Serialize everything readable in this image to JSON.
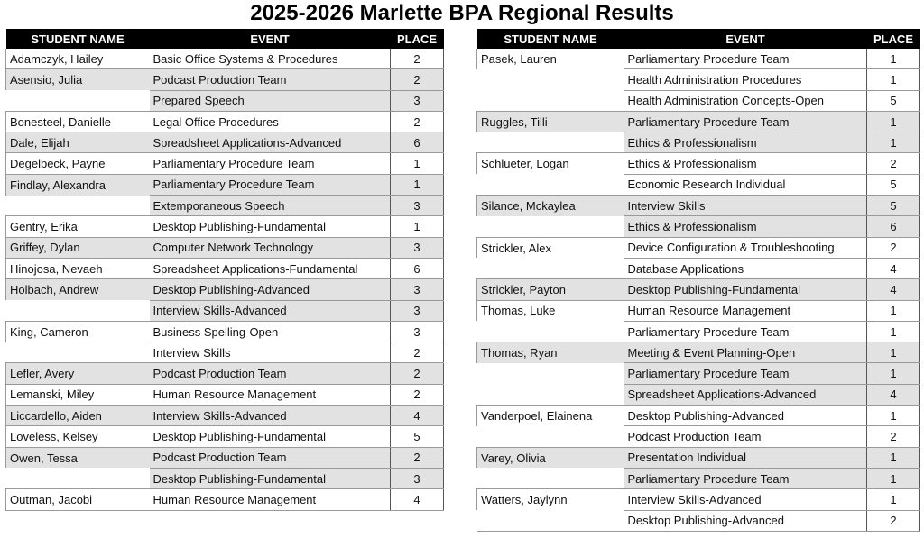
{
  "title": "2025-2026 Marlette BPA Regional Results",
  "tables": [
    {
      "headers": [
        "STUDENT NAME",
        "EVENT",
        "PLACE"
      ],
      "students": [
        {
          "name": "Adamczyk, Hailey",
          "events": [
            {
              "event": "Basic Office Systems & Procedures",
              "place": 2
            }
          ]
        },
        {
          "name": "Asensio, Julia",
          "events": [
            {
              "event": "Podcast Production Team",
              "place": 2
            },
            {
              "event": "Prepared Speech",
              "place": 3
            }
          ]
        },
        {
          "name": "Bonesteel, Danielle",
          "events": [
            {
              "event": "Legal Office Procedures",
              "place": 2
            }
          ]
        },
        {
          "name": "Dale, Elijah",
          "events": [
            {
              "event": "Spreadsheet Applications-Advanced",
              "place": 6
            }
          ]
        },
        {
          "name": "Degelbeck, Payne",
          "events": [
            {
              "event": "Parliamentary Procedure Team",
              "place": 1
            }
          ]
        },
        {
          "name": "Findlay, Alexandra",
          "events": [
            {
              "event": "Parliamentary Procedure Team",
              "place": 1
            },
            {
              "event": "Extemporaneous Speech",
              "place": 3
            }
          ]
        },
        {
          "name": "Gentry, Erika",
          "events": [
            {
              "event": "Desktop Publishing-Fundamental",
              "place": 1
            }
          ]
        },
        {
          "name": "Griffey, Dylan",
          "events": [
            {
              "event": "Computer Network Technology",
              "place": 3
            }
          ]
        },
        {
          "name": "Hinojosa, Nevaeh",
          "events": [
            {
              "event": "Spreadsheet Applications-Fundamental",
              "place": 6
            }
          ]
        },
        {
          "name": "Holbach, Andrew",
          "events": [
            {
              "event": "Desktop Publishing-Advanced",
              "place": 3
            },
            {
              "event": "Interview Skills-Advanced",
              "place": 3
            }
          ]
        },
        {
          "name": "King, Cameron",
          "events": [
            {
              "event": "Business Spelling-Open",
              "place": 3
            },
            {
              "event": "Interview Skills",
              "place": 2
            }
          ]
        },
        {
          "name": "Lefler, Avery",
          "events": [
            {
              "event": "Podcast Production Team",
              "place": 2
            }
          ]
        },
        {
          "name": "Lemanski, Miley",
          "events": [
            {
              "event": "Human Resource Management",
              "place": 2
            }
          ]
        },
        {
          "name": "Liccardello, Aiden",
          "events": [
            {
              "event": "Interview Skills-Advanced",
              "place": 4
            }
          ]
        },
        {
          "name": "Loveless, Kelsey",
          "events": [
            {
              "event": "Desktop Publishing-Fundamental",
              "place": 5
            }
          ]
        },
        {
          "name": "Owen, Tessa",
          "events": [
            {
              "event": "Podcast Production Team",
              "place": 2
            },
            {
              "event": "Desktop Publishing-Fundamental",
              "place": 3
            }
          ]
        },
        {
          "name": "Outman, Jacobi",
          "events": [
            {
              "event": "Human Resource Management",
              "place": 4
            }
          ]
        }
      ]
    },
    {
      "headers": [
        "STUDENT NAME",
        "EVENT",
        "PLACE"
      ],
      "students": [
        {
          "name": "Pasek, Lauren",
          "events": [
            {
              "event": "Parliamentary Procedure Team",
              "place": 1
            },
            {
              "event": "Health Administration Procedures",
              "place": 1
            },
            {
              "event": "Health Administration Concepts-Open",
              "place": 5
            }
          ]
        },
        {
          "name": "Ruggles, Tilli",
          "events": [
            {
              "event": "Parliamentary Procedure Team",
              "place": 1
            },
            {
              "event": "Ethics & Professionalism",
              "place": 1
            }
          ]
        },
        {
          "name": "Schlueter, Logan",
          "events": [
            {
              "event": "Ethics & Professionalism",
              "place": 2
            },
            {
              "event": "Economic Research Individual",
              "place": 5
            }
          ]
        },
        {
          "name": "Silance, Mckaylea",
          "events": [
            {
              "event": "Interview Skills",
              "place": 5
            },
            {
              "event": "Ethics & Professionalism",
              "place": 6
            }
          ]
        },
        {
          "name": "Strickler, Alex",
          "events": [
            {
              "event": "Device Configuration & Troubleshooting",
              "place": 2
            },
            {
              "event": "Database Applications",
              "place": 4
            }
          ]
        },
        {
          "name": "Strickler, Payton",
          "events": [
            {
              "event": "Desktop Publishing-Fundamental",
              "place": 4
            }
          ]
        },
        {
          "name": "Thomas, Luke",
          "events": [
            {
              "event": "Human Resource Management",
              "place": 1
            },
            {
              "event": "Parliamentary Procedure Team",
              "place": 1
            }
          ]
        },
        {
          "name": "Thomas, Ryan",
          "events": [
            {
              "event": "Meeting & Event Planning-Open",
              "place": 1
            },
            {
              "event": "Parliamentary Procedure Team",
              "place": 1
            },
            {
              "event": "Spreadsheet Applications-Advanced",
              "place": 4
            }
          ]
        },
        {
          "name": "Vanderpoel, Elainena",
          "events": [
            {
              "event": "Desktop Publishing-Advanced",
              "place": 1
            },
            {
              "event": "Podcast Production Team",
              "place": 2
            }
          ]
        },
        {
          "name": "Varey, Olivia",
          "events": [
            {
              "event": "Presentation Individual",
              "place": 1
            },
            {
              "event": "Parliamentary Procedure Team",
              "place": 1
            }
          ]
        },
        {
          "name": "Watters, Jaylynn",
          "events": [
            {
              "event": "Interview Skills-Advanced",
              "place": 1
            },
            {
              "event": "Desktop Publishing-Advanced",
              "place": 2
            }
          ]
        }
      ]
    }
  ]
}
